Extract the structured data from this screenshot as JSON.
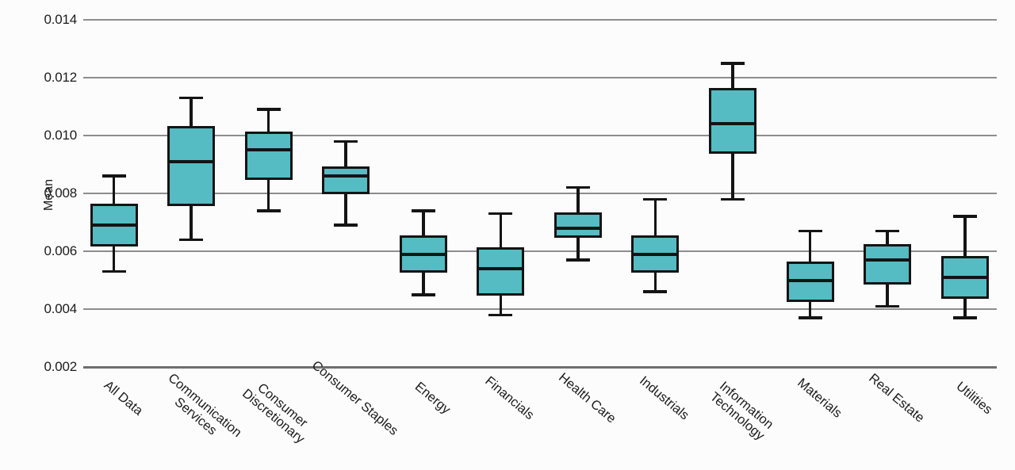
{
  "chart_data": {
    "type": "box",
    "title": "",
    "ylabel": "Mean",
    "ylim": [
      0.002,
      0.014
    ],
    "yticks": [
      0.002,
      0.004,
      0.006,
      0.008,
      0.01,
      0.012,
      0.014
    ],
    "ytick_labels": [
      "0.002",
      "0.004",
      "0.006",
      "0.008",
      "0.010",
      "0.012",
      "0.014"
    ],
    "grid": "horizontal-only",
    "legend": "none",
    "box_fill_color": "#54bcc2",
    "line_color": "#141414",
    "gridline_color": "#8d8d8d",
    "background_color": "#fcfcfc",
    "categories": [
      "All Data",
      "Communication Services",
      "Consumer Discretionary",
      "Consumer Staples",
      "Energy",
      "Financials",
      "Health Care",
      "Industrials",
      "Information Technology",
      "Materials",
      "Real Estate",
      "Utilities"
    ],
    "category_label_lines": [
      [
        "All Data"
      ],
      [
        "Communication",
        "Services"
      ],
      [
        "Consumer",
        "Discretionary"
      ],
      [
        "Consumer Staples"
      ],
      [
        "Energy"
      ],
      [
        "Financials"
      ],
      [
        "Health Care"
      ],
      [
        "Industrials"
      ],
      [
        "Information",
        "Technology"
      ],
      [
        "Materials"
      ],
      [
        "Real Estate"
      ],
      [
        "Utilities"
      ]
    ],
    "series": [
      {
        "name": "All Data",
        "whisker_low": 0.0053,
        "q1": 0.0062,
        "median": 0.0069,
        "q3": 0.0076,
        "whisker_high": 0.0086
      },
      {
        "name": "Communication Services",
        "whisker_low": 0.0064,
        "q1": 0.0076,
        "median": 0.0091,
        "q3": 0.0103,
        "whisker_high": 0.0113
      },
      {
        "name": "Consumer Discretionary",
        "whisker_low": 0.0074,
        "q1": 0.0085,
        "median": 0.0095,
        "q3": 0.0101,
        "whisker_high": 0.0109
      },
      {
        "name": "Consumer Staples",
        "whisker_low": 0.0069,
        "q1": 0.008,
        "median": 0.0086,
        "q3": 0.0089,
        "whisker_high": 0.0098
      },
      {
        "name": "Energy",
        "whisker_low": 0.0045,
        "q1": 0.0053,
        "median": 0.0059,
        "q3": 0.0065,
        "whisker_high": 0.0074
      },
      {
        "name": "Financials",
        "whisker_low": 0.0038,
        "q1": 0.0045,
        "median": 0.0054,
        "q3": 0.0061,
        "whisker_high": 0.0073
      },
      {
        "name": "Health Care",
        "whisker_low": 0.0057,
        "q1": 0.0065,
        "median": 0.0068,
        "q3": 0.0073,
        "whisker_high": 0.0082
      },
      {
        "name": "Industrials",
        "whisker_low": 0.0046,
        "q1": 0.0053,
        "median": 0.0059,
        "q3": 0.0065,
        "whisker_high": 0.0078
      },
      {
        "name": "Information Technology",
        "whisker_low": 0.0078,
        "q1": 0.0094,
        "median": 0.0104,
        "q3": 0.0116,
        "whisker_high": 0.0125
      },
      {
        "name": "Materials",
        "whisker_low": 0.0037,
        "q1": 0.0043,
        "median": 0.005,
        "q3": 0.0056,
        "whisker_high": 0.0067
      },
      {
        "name": "Real Estate",
        "whisker_low": 0.0041,
        "q1": 0.0049,
        "median": 0.0057,
        "q3": 0.0062,
        "whisker_high": 0.0067
      },
      {
        "name": "Utilities",
        "whisker_low": 0.0037,
        "q1": 0.0044,
        "median": 0.0051,
        "q3": 0.0058,
        "whisker_high": 0.0072
      }
    ]
  }
}
